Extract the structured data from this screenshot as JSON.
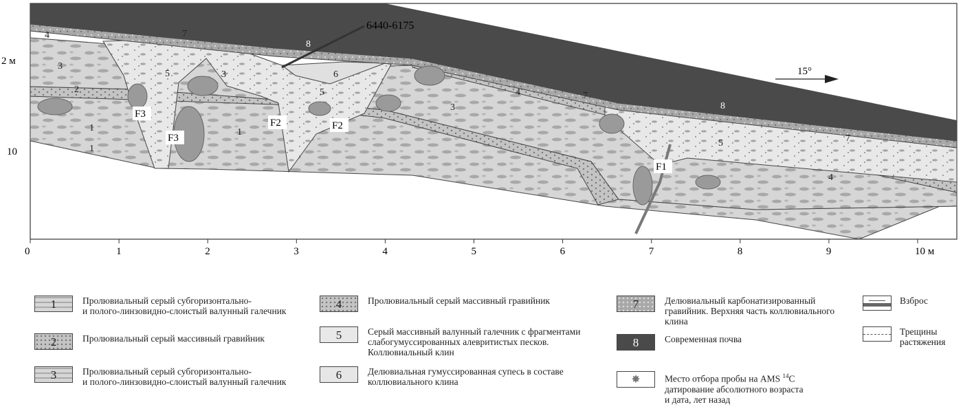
{
  "section": {
    "sample_label": "6440-6175",
    "dip_label": "15°",
    "y_labels": [
      "2 м",
      "10"
    ],
    "x_ticks": [
      "0",
      "1",
      "2",
      "3",
      "4",
      "5",
      "6",
      "7",
      "8",
      "9",
      "10 м"
    ],
    "fault_labels": [
      "F3",
      "F3",
      "F2",
      "F2",
      "F1"
    ],
    "unit_labels": [
      "1",
      "2",
      "3",
      "4",
      "5",
      "6",
      "7",
      "8"
    ]
  },
  "colors": {
    "soil": "#4a4a4a",
    "gravel": "#b8b8b8",
    "pebble": "#d4d4d4",
    "wedge": "#e6e6e6",
    "clast": "#9a9a9a",
    "fault": "#7a7a7a"
  },
  "legend": [
    {
      "num": "1",
      "text": "Пролювиальный серый субгоризонтально-\nи полого-линзовидно-слоистый валунный галечник"
    },
    {
      "num": "2",
      "text": "Пролювиальный серый массивный гравийник"
    },
    {
      "num": "3",
      "text": "Пролювиальный серый субгоризонтально-\nи полого-линзовидно-слоистый валунный галечник"
    },
    {
      "num": "4",
      "text": "Пролювиальный серый массивный гравийник"
    },
    {
      "num": "5",
      "text": "Серый массивный валунный галечник с фрагментами\nслабогумуссированных алевритистых песков.\nКоллювиальный клин"
    },
    {
      "num": "6",
      "text": "Делювиальная гумуссированная супесь в составе\nколлювиального клина"
    },
    {
      "num": "7",
      "text": "Делювиальный карбонатизированный\nгравийник. Верхняя часть коллювиального\nклина"
    },
    {
      "num": "8",
      "text": "Современная почва"
    },
    {
      "num": "",
      "text_a": "Место отбора пробы на AMS ",
      "sup": "14",
      "text_b": "C\nдатирование абсолютного возраста\nи дата, лет назад",
      "icon": "star-burst-icon"
    },
    {
      "num": "",
      "text": "Взброс",
      "icon": "thrust-fault-icon"
    },
    {
      "num": "",
      "text": "Трещины\nрастяжения",
      "icon": "tension-crack-icon"
    }
  ]
}
